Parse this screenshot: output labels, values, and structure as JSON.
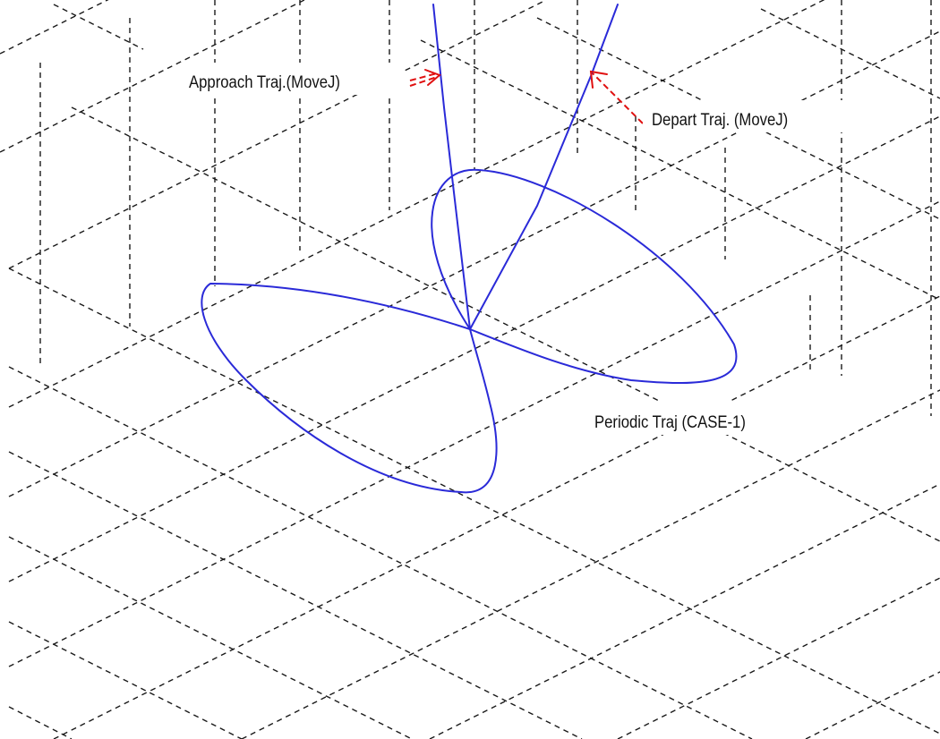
{
  "labels": {
    "approach": "Approach Traj.(MoveJ)",
    "depart": "Depart  Traj. (MoveJ)",
    "periodic": "Periodic Traj (CASE-1)"
  },
  "colors": {
    "trajectory": "#2a2ad8",
    "arrow": "#e01010",
    "grid": "#1a1a1a",
    "background": "#ffffff"
  }
}
